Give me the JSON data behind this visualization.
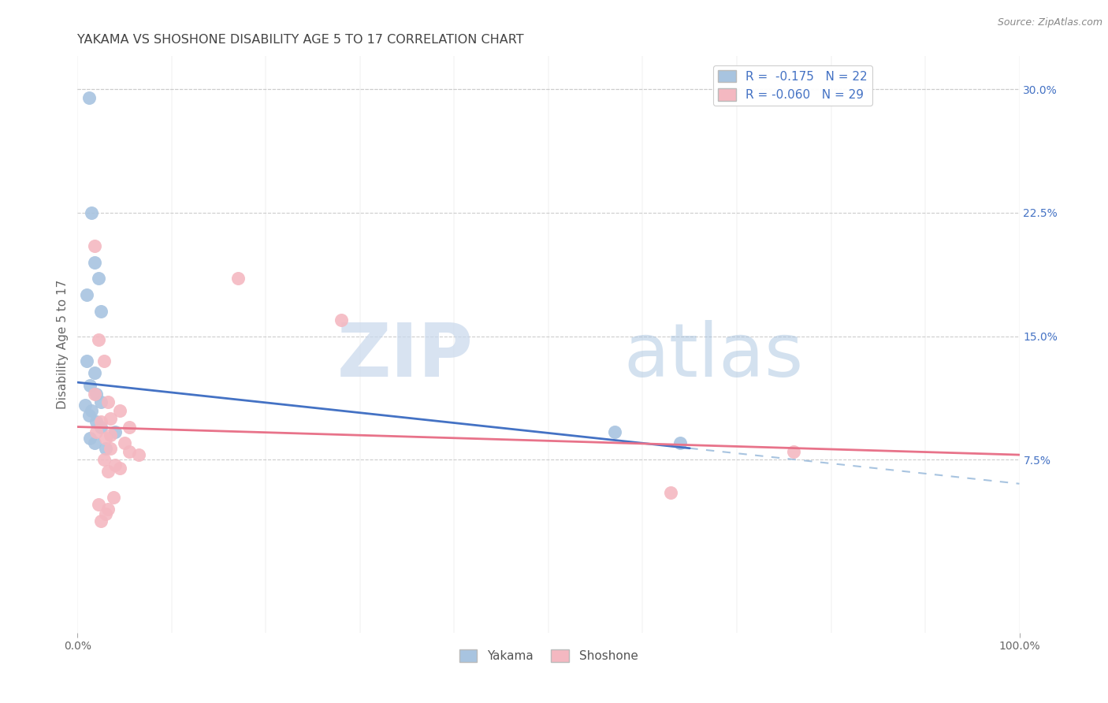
{
  "title": "YAKAMA VS SHOSHONE DISABILITY AGE 5 TO 17 CORRELATION CHART",
  "source_text": "Source: ZipAtlas.com",
  "ylabel": "Disability Age 5 to 17",
  "xlim": [
    0,
    100
  ],
  "ylim": [
    -3,
    32
  ],
  "right_yticks": [
    0,
    7.5,
    15.0,
    22.5,
    30.0
  ],
  "right_yticklabels": [
    "",
    "7.5%",
    "15.0%",
    "22.5%",
    "30.0%"
  ],
  "legend_r_yakama": "-0.175",
  "legend_n_yakama": "22",
  "legend_r_shoshone": "-0.060",
  "legend_n_shoshone": "29",
  "yakama_color": "#a8c4e0",
  "shoshone_color": "#f4b8c1",
  "yakama_line_color": "#4472c4",
  "shoshone_line_color": "#e8738a",
  "dashed_line_color": "#a8c4e0",
  "background_color": "#ffffff",
  "grid_color": "#cccccc",
  "watermark_zip": "ZIP",
  "watermark_atlas": "atlas",
  "yakama_points": [
    [
      1.2,
      29.5
    ],
    [
      1.5,
      22.5
    ],
    [
      1.8,
      19.5
    ],
    [
      2.2,
      18.5
    ],
    [
      1.0,
      17.5
    ],
    [
      2.5,
      16.5
    ],
    [
      1.0,
      13.5
    ],
    [
      1.8,
      12.8
    ],
    [
      1.3,
      12.0
    ],
    [
      2.0,
      11.5
    ],
    [
      2.5,
      11.0
    ],
    [
      0.8,
      10.8
    ],
    [
      1.5,
      10.5
    ],
    [
      1.2,
      10.2
    ],
    [
      2.0,
      9.8
    ],
    [
      2.5,
      9.5
    ],
    [
      4.0,
      9.2
    ],
    [
      1.3,
      8.8
    ],
    [
      1.8,
      8.5
    ],
    [
      3.0,
      8.2
    ],
    [
      57.0,
      9.2
    ],
    [
      64.0,
      8.5
    ]
  ],
  "shoshone_points": [
    [
      1.8,
      20.5
    ],
    [
      17.0,
      18.5
    ],
    [
      28.0,
      16.0
    ],
    [
      2.2,
      14.8
    ],
    [
      2.8,
      13.5
    ],
    [
      1.8,
      11.5
    ],
    [
      3.2,
      11.0
    ],
    [
      4.5,
      10.5
    ],
    [
      3.5,
      10.0
    ],
    [
      2.5,
      9.8
    ],
    [
      5.5,
      9.5
    ],
    [
      2.0,
      9.2
    ],
    [
      3.5,
      9.0
    ],
    [
      3.0,
      8.8
    ],
    [
      5.0,
      8.5
    ],
    [
      3.5,
      8.2
    ],
    [
      5.5,
      8.0
    ],
    [
      6.5,
      7.8
    ],
    [
      2.8,
      7.5
    ],
    [
      4.0,
      7.2
    ],
    [
      4.5,
      7.0
    ],
    [
      3.2,
      6.8
    ],
    [
      3.8,
      5.2
    ],
    [
      2.2,
      4.8
    ],
    [
      3.2,
      4.5
    ],
    [
      3.0,
      4.2
    ],
    [
      2.5,
      3.8
    ],
    [
      76.0,
      8.0
    ],
    [
      63.0,
      5.5
    ]
  ],
  "yakama_line_x0": 0,
  "yakama_line_y0": 12.2,
  "yakama_line_x1": 65,
  "yakama_line_y1": 8.2,
  "shoshone_line_x0": 0,
  "shoshone_line_y0": 9.5,
  "shoshone_line_x1": 100,
  "shoshone_line_y1": 7.8
}
